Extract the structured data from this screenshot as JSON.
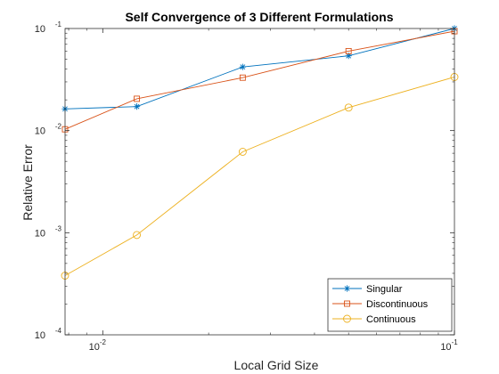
{
  "chart_data": {
    "type": "line",
    "title": "Self Convergence of 3 Different Formulations",
    "xlabel": "Local Grid Size",
    "ylabel": "Relative Error",
    "xscale": "log",
    "yscale": "log",
    "xlim": [
      0.0078125,
      0.1
    ],
    "ylim": [
      0.0001,
      0.1
    ],
    "xticks": [
      {
        "value": 0.01,
        "base": "10",
        "exp": "-2"
      },
      {
        "value": 0.1,
        "base": "10",
        "exp": "-1"
      }
    ],
    "yticks": [
      {
        "value": 0.0001,
        "base": "10",
        "exp": "-4"
      },
      {
        "value": 0.001,
        "base": "10",
        "exp": "-3"
      },
      {
        "value": 0.01,
        "base": "10",
        "exp": "-2"
      },
      {
        "value": 0.1,
        "base": "10",
        "exp": "-1"
      }
    ],
    "grid": false,
    "legend_position": "bottom-right",
    "x": [
      0.0078125,
      0.0125,
      0.025,
      0.05,
      0.1
    ],
    "series": [
      {
        "name": "Singular",
        "marker": "asterisk",
        "color": "#0072BD",
        "values": [
          0.0163,
          0.0172,
          0.042,
          0.054,
          0.1
        ]
      },
      {
        "name": "Discontinuous",
        "marker": "square",
        "color": "#D95319",
        "values": [
          0.0103,
          0.0205,
          0.033,
          0.06,
          0.094
        ]
      },
      {
        "name": "Continuous",
        "marker": "circle",
        "color": "#EDB120",
        "values": [
          0.00038,
          0.00095,
          0.0062,
          0.0168,
          0.0335
        ]
      }
    ]
  }
}
